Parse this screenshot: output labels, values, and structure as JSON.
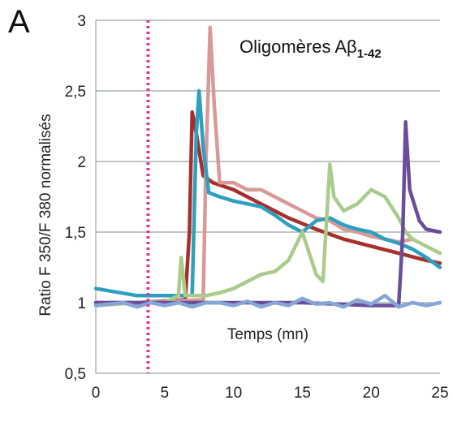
{
  "chart_data": {
    "type": "line",
    "panel_label": "A",
    "annotation": {
      "text": "Oligomères Aβ",
      "subscript": "1-42"
    },
    "xlabel": "Temps (mn)",
    "ylabel": "Ratio F 350/F 380 normalisés",
    "xlim": [
      0,
      25
    ],
    "ylim": [
      0.5,
      3
    ],
    "x_ticks": [
      0,
      5,
      10,
      15,
      20,
      25
    ],
    "x_tick_labels": [
      "0",
      "5",
      "10",
      "15",
      "20",
      "25"
    ],
    "y_ticks": [
      0.5,
      1,
      1.5,
      2,
      2.5,
      3
    ],
    "y_tick_labels": [
      "0,5",
      "1",
      "1,5",
      "2",
      "2,5",
      "3"
    ],
    "grid": "horizontal",
    "vertical_marker": {
      "x": 3.8,
      "style": "dotted",
      "color": "#e0379a"
    },
    "series": [
      {
        "color": "#a8302c",
        "x": [
          0,
          3,
          6.5,
          6.8,
          7.0,
          7.3,
          7.8,
          8.5,
          10,
          12,
          14,
          16,
          18,
          20,
          22,
          24,
          25
        ],
        "y": [
          1.0,
          1.0,
          1.02,
          1.5,
          2.35,
          2.2,
          1.9,
          1.85,
          1.8,
          1.7,
          1.6,
          1.52,
          1.45,
          1.4,
          1.35,
          1.3,
          1.28
        ]
      },
      {
        "color": "#d89a98",
        "x": [
          0,
          3,
          7.8,
          8.0,
          8.3,
          8.6,
          9.0,
          10,
          11,
          12,
          13,
          14,
          15,
          16,
          17,
          18,
          19,
          20,
          21,
          22,
          23
        ],
        "y": [
          1.0,
          1.0,
          1.02,
          2.0,
          2.95,
          2.4,
          1.85,
          1.85,
          1.8,
          1.8,
          1.75,
          1.7,
          1.65,
          1.6,
          1.58,
          1.52,
          1.5,
          1.47,
          1.45,
          1.43,
          1.45
        ]
      },
      {
        "color": "#2e9fbf",
        "x": [
          0,
          3,
          7.0,
          7.3,
          7.5,
          7.8,
          8.2,
          9,
          10,
          11,
          12,
          13,
          14,
          15,
          16,
          17,
          18,
          19,
          20,
          21,
          22,
          23,
          24,
          25
        ],
        "y": [
          1.1,
          1.05,
          1.05,
          2.2,
          2.5,
          2.1,
          1.78,
          1.75,
          1.72,
          1.7,
          1.68,
          1.62,
          1.55,
          1.5,
          1.58,
          1.6,
          1.55,
          1.52,
          1.5,
          1.45,
          1.42,
          1.38,
          1.32,
          1.25
        ]
      },
      {
        "color": "#a9cc8a",
        "x": [
          0,
          3,
          5,
          6.0,
          6.2,
          6.5,
          7,
          8,
          9,
          10,
          11,
          12,
          13,
          14,
          15,
          15.5,
          16,
          16.5,
          17.0,
          17.3,
          18,
          19,
          20,
          21,
          22,
          22.5,
          23,
          24,
          25
        ],
        "y": [
          0.98,
          1.0,
          1.0,
          1.05,
          1.32,
          1.05,
          1.05,
          1.05,
          1.07,
          1.1,
          1.15,
          1.2,
          1.22,
          1.3,
          1.5,
          1.35,
          1.2,
          1.15,
          1.98,
          1.75,
          1.65,
          1.7,
          1.8,
          1.75,
          1.6,
          1.5,
          1.45,
          1.4,
          1.35
        ]
      },
      {
        "color": "#6a4e9c",
        "x": [
          0,
          5,
          10,
          15,
          20,
          22.0,
          22.3,
          22.5,
          22.8,
          23.5,
          24,
          25
        ],
        "y": [
          1.0,
          1.0,
          1.0,
          1.0,
          0.98,
          0.98,
          1.5,
          2.28,
          1.8,
          1.58,
          1.52,
          1.5
        ]
      },
      {
        "color": "#86a7d6",
        "x": [
          0,
          1,
          2,
          3,
          4,
          5,
          6,
          7,
          8,
          9,
          10,
          11,
          12,
          13,
          14,
          15,
          16,
          17,
          18,
          19,
          20,
          21,
          22,
          23,
          24,
          25
        ],
        "y": [
          0.98,
          0.99,
          1.0,
          0.97,
          1.0,
          0.98,
          1.0,
          0.97,
          1.0,
          1.0,
          0.98,
          1.01,
          0.97,
          1.0,
          0.98,
          1.03,
          0.99,
          1.0,
          0.97,
          1.02,
          0.99,
          1.05,
          0.97,
          1.0,
          0.98,
          1.0
        ]
      }
    ]
  }
}
